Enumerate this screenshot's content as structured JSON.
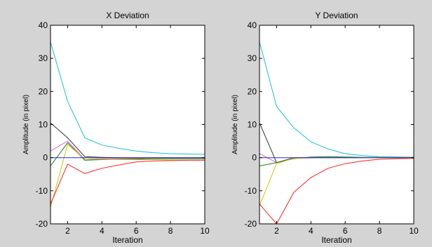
{
  "chart_data": [
    {
      "type": "line",
      "title": "X Deviation",
      "xlabel": "Iteration",
      "ylabel": "Amplitude (in pixel)",
      "xlim": [
        1,
        10
      ],
      "ylim": [
        -20,
        40
      ],
      "xticks": [
        "2",
        "4",
        "6",
        "8",
        "10"
      ],
      "yticks": [
        "-20",
        "-10",
        "0",
        "10",
        "20",
        "30",
        "40"
      ],
      "grid": false,
      "x": [
        1,
        2,
        3,
        4,
        5,
        6,
        7,
        8,
        9,
        10
      ],
      "series": [
        {
          "color": "#19c3c8",
          "values": [
            35,
            17,
            6,
            3.8,
            2.8,
            2.0,
            1.5,
            1.2,
            1.1,
            1.0
          ]
        },
        {
          "color": "#333333",
          "values": [
            10.5,
            6,
            0.3,
            0.1,
            0,
            0,
            0,
            0,
            0,
            0
          ]
        },
        {
          "color": "#e060e0",
          "values": [
            2,
            5,
            -0.5,
            -0.3,
            -0.2,
            -0.2,
            -0.1,
            -0.1,
            -0.1,
            -0.1
          ]
        },
        {
          "color": "#1a7a1a",
          "values": [
            -2.5,
            4.5,
            -0.8,
            -0.6,
            -0.5,
            -0.4,
            -0.3,
            -0.3,
            -0.3,
            -0.3
          ]
        },
        {
          "color": "#ccc800",
          "values": [
            -15,
            4,
            -0.5,
            -0.5,
            -0.6,
            -0.6,
            -0.6,
            -0.7,
            -0.7,
            -0.7
          ]
        },
        {
          "color": "#2a2ad0",
          "values": [
            0,
            0,
            0,
            0,
            0,
            0,
            0,
            0,
            0,
            0
          ]
        },
        {
          "color": "#ff2020",
          "values": [
            -14,
            -2,
            -4.8,
            -3.2,
            -2.2,
            -1.3,
            -1.0,
            -0.9,
            -0.8,
            -0.8
          ]
        }
      ]
    },
    {
      "type": "line",
      "title": "Y Deviation",
      "xlabel": "Iteration",
      "ylabel": "Amplitude (in pixel)",
      "xlim": [
        1,
        10
      ],
      "ylim": [
        -20,
        40
      ],
      "xticks": [
        "2",
        "4",
        "6",
        "8",
        "10"
      ],
      "yticks": [
        "-20",
        "-10",
        "0",
        "10",
        "20",
        "30",
        "40"
      ],
      "grid": false,
      "x": [
        1,
        2,
        3,
        4,
        5,
        6,
        7,
        8,
        9,
        10
      ],
      "series": [
        {
          "color": "#19c3c8",
          "values": [
            35,
            15.5,
            9,
            4.8,
            2.6,
            1.2,
            0.6,
            0.3,
            0.2,
            0.1
          ]
        },
        {
          "color": "#333333",
          "values": [
            10.5,
            -1.5,
            0,
            0,
            0,
            0,
            0,
            0,
            0,
            0
          ]
        },
        {
          "color": "#e060e0",
          "values": [
            1.2,
            -1.5,
            -0.2,
            -0.1,
            0,
            0,
            0,
            0,
            0,
            0
          ]
        },
        {
          "color": "#1a7a1a",
          "values": [
            -2.5,
            -1.5,
            -0.3,
            0.2,
            0.3,
            0.2,
            0.1,
            0.1,
            0.1,
            0.1
          ]
        },
        {
          "color": "#ccc800",
          "values": [
            -14.5,
            -1.8,
            -0.2,
            0,
            0,
            0,
            0,
            0,
            0,
            0
          ]
        },
        {
          "color": "#2a2ad0",
          "values": [
            0,
            0,
            0,
            0,
            0,
            0,
            0,
            0,
            0,
            0
          ]
        },
        {
          "color": "#ff2020",
          "values": [
            -14,
            -20,
            -10.5,
            -6,
            -3.2,
            -1.8,
            -1.0,
            -0.5,
            -0.3,
            -0.2
          ]
        }
      ]
    }
  ]
}
